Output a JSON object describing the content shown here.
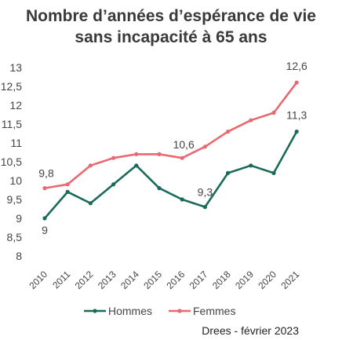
{
  "chart_data": {
    "type": "line",
    "title": "Nombre d’années d’espérance de vie sans incapacité à 65 ans",
    "title_lines": [
      "Nombre d’années d’espérance de vie",
      "sans incapacité à 65 ans"
    ],
    "x": [
      "2010",
      "2011",
      "2012",
      "2013",
      "2014",
      "2015",
      "2016",
      "2017",
      "2018",
      "2019",
      "2020",
      "2021"
    ],
    "ylim": [
      8,
      13
    ],
    "yticks": [
      "13",
      "12,5",
      "12",
      "11,5",
      "11",
      "10,5",
      "10",
      "9,5",
      "9",
      "8,5",
      "8"
    ],
    "ytick_values": [
      13,
      12.5,
      12,
      11.5,
      11,
      10.5,
      10,
      9.5,
      9,
      8.5,
      8
    ],
    "grid": false,
    "legend_position": "bottom",
    "series": [
      {
        "name": "Hommes",
        "color": "#1a6b5a",
        "values": [
          9.0,
          9.7,
          9.4,
          9.9,
          10.4,
          9.8,
          9.5,
          9.3,
          10.2,
          10.4,
          10.2,
          11.3
        ]
      },
      {
        "name": "Femmes",
        "color": "#e8696f",
        "values": [
          9.8,
          9.9,
          10.4,
          10.6,
          10.7,
          10.7,
          10.6,
          10.9,
          11.3,
          11.6,
          11.8,
          12.6
        ]
      }
    ],
    "data_labels": [
      {
        "series": 0,
        "index": 0,
        "text": "9"
      },
      {
        "series": 0,
        "index": 7,
        "text": "9,3"
      },
      {
        "series": 0,
        "index": 11,
        "text": "11,3"
      },
      {
        "series": 1,
        "index": 0,
        "text": "9,8"
      },
      {
        "series": 1,
        "index": 6,
        "text": "10,6"
      },
      {
        "series": 1,
        "index": 11,
        "text": "12,6"
      }
    ],
    "source": "Drees - février 2023"
  }
}
